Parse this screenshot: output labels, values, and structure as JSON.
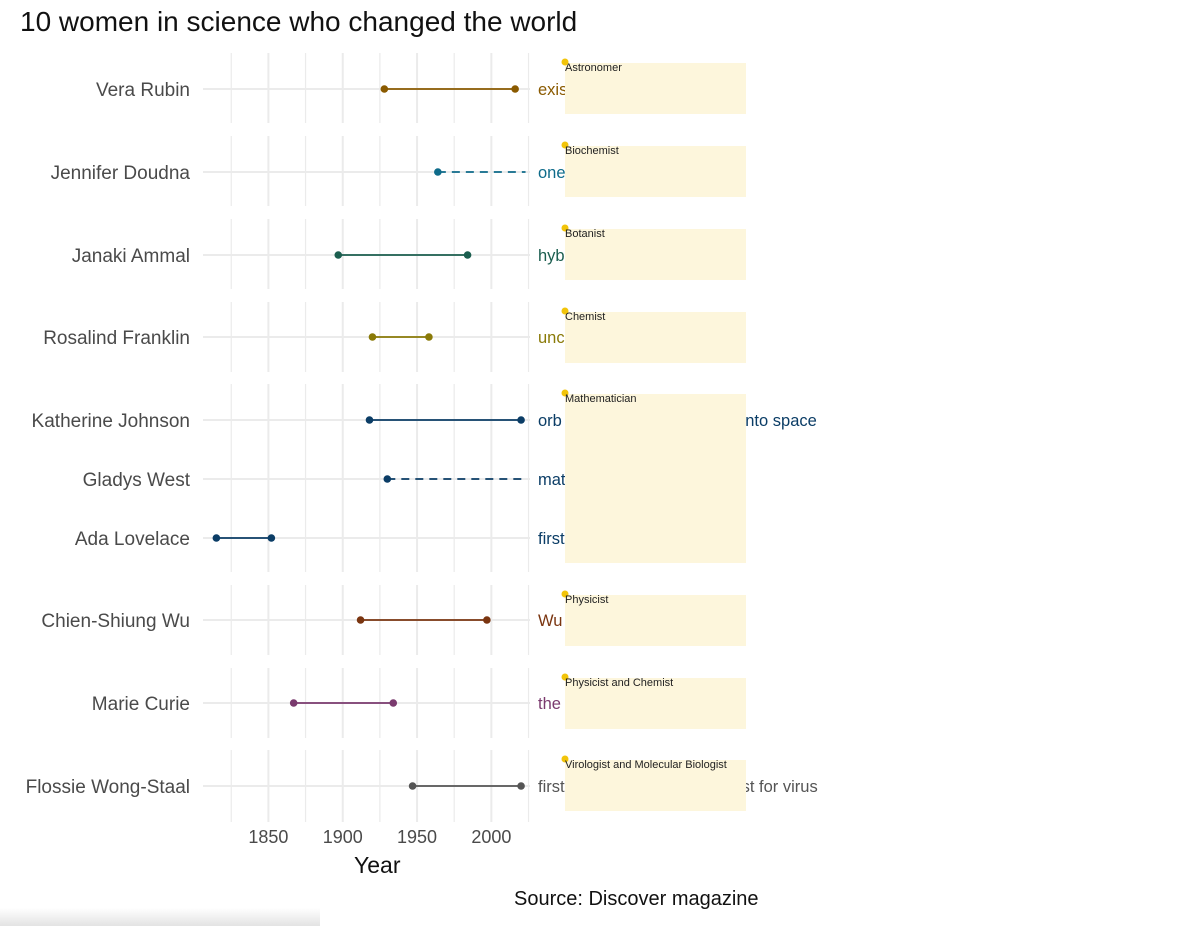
{
  "title": "10 women in science who changed the world",
  "source": "Source: Discover magazine",
  "chart_data": {
    "type": "dumbbell",
    "xlabel": "Year",
    "xlim": [
      1806,
      2026
    ],
    "xticks": [
      1850,
      1900,
      1950,
      2000
    ],
    "grid": true,
    "groups": [
      {
        "field": "Astronomer",
        "people": [
          {
            "name": "Vera Rubin",
            "born": 1928,
            "died": 2016,
            "living": false,
            "color": "#8a5a00",
            "achievement": "existence of dark matter",
            "visible_text": "exis"
          }
        ]
      },
      {
        "field": "Biochemist",
        "people": [
          {
            "name": "Jennifer Doudna",
            "born": 1964,
            "died": null,
            "living": true,
            "color": "#0e6b8a",
            "achievement": "one of the developers of CRISPR",
            "visible_text": "one                          rs of CRISPR"
          }
        ]
      },
      {
        "field": "Botanist",
        "people": [
          {
            "name": "Janaki Ammal",
            "born": 1897,
            "died": 1984,
            "living": false,
            "color": "#1b5e4f",
            "achievement": "hybrid crops and plant protection",
            "visible_text": "hyb                               protection"
          }
        ]
      },
      {
        "field": "Chemist",
        "people": [
          {
            "name": "Rosalind Franklin",
            "born": 1920,
            "died": 1958,
            "living": false,
            "color": "#8a7a08",
            "achievement": "uncovered the molecular structures of DNA",
            "visible_text": "unc                              ular structures of DNA"
          }
        ]
      },
      {
        "field": "Mathematician",
        "people": [
          {
            "name": "Katherine Johnson",
            "born": 1918,
            "died": 2020,
            "living": false,
            "color": "#0b3d66",
            "achievement": "orbital mechanics for sending first Americans into space",
            "visible_text": "orb                               sending first Americans into space"
          },
          {
            "name": "Gladys West",
            "born": 1930,
            "died": null,
            "living": true,
            "color": "#0b3d66",
            "achievement": "mathematical modeling of the shape of the Earth",
            "visible_text": "mat                               ne shape of the Earth"
          },
          {
            "name": "Ada Lovelace",
            "born": 1815,
            "died": 1852,
            "living": false,
            "color": "#0b3d66",
            "achievement": "first computer programmer",
            "visible_text": "first"
          }
        ]
      },
      {
        "field": "Physicist",
        "people": [
          {
            "name": "Chien-Shiung Wu",
            "born": 1912,
            "died": 1997,
            "living": false,
            "color": "#7a3510",
            "achievement": "Wu experiment disproved theory of parity",
            "visible_text": "Wu                                theory of parity"
          }
        ]
      },
      {
        "field": "Physicist and Chemist",
        "people": [
          {
            "name": "Marie Curie",
            "born": 1867,
            "died": 1934,
            "living": false,
            "color": "#7a3a6e",
            "achievement": "the first woman Nobel Prize win",
            "visible_text": "the                               woman Nobel Prize win"
          }
        ]
      },
      {
        "field": "Virologist and Molecular Biologist",
        "people": [
          {
            "name": "Flossie Wong-Staal",
            "born": 1947,
            "died": 2020,
            "living": false,
            "color": "#555555",
            "achievement": "first to map HIV genes, which led to test for virus",
            "visible_text": "first                               s genes, which led to test for virus"
          }
        ]
      }
    ],
    "dashed_end_year": 2023,
    "label_color": "#4a4a4a",
    "grid_color": "#ebebeb",
    "field_box_color": "#fdf6dc",
    "field_dot_color": "#f2c40a"
  }
}
